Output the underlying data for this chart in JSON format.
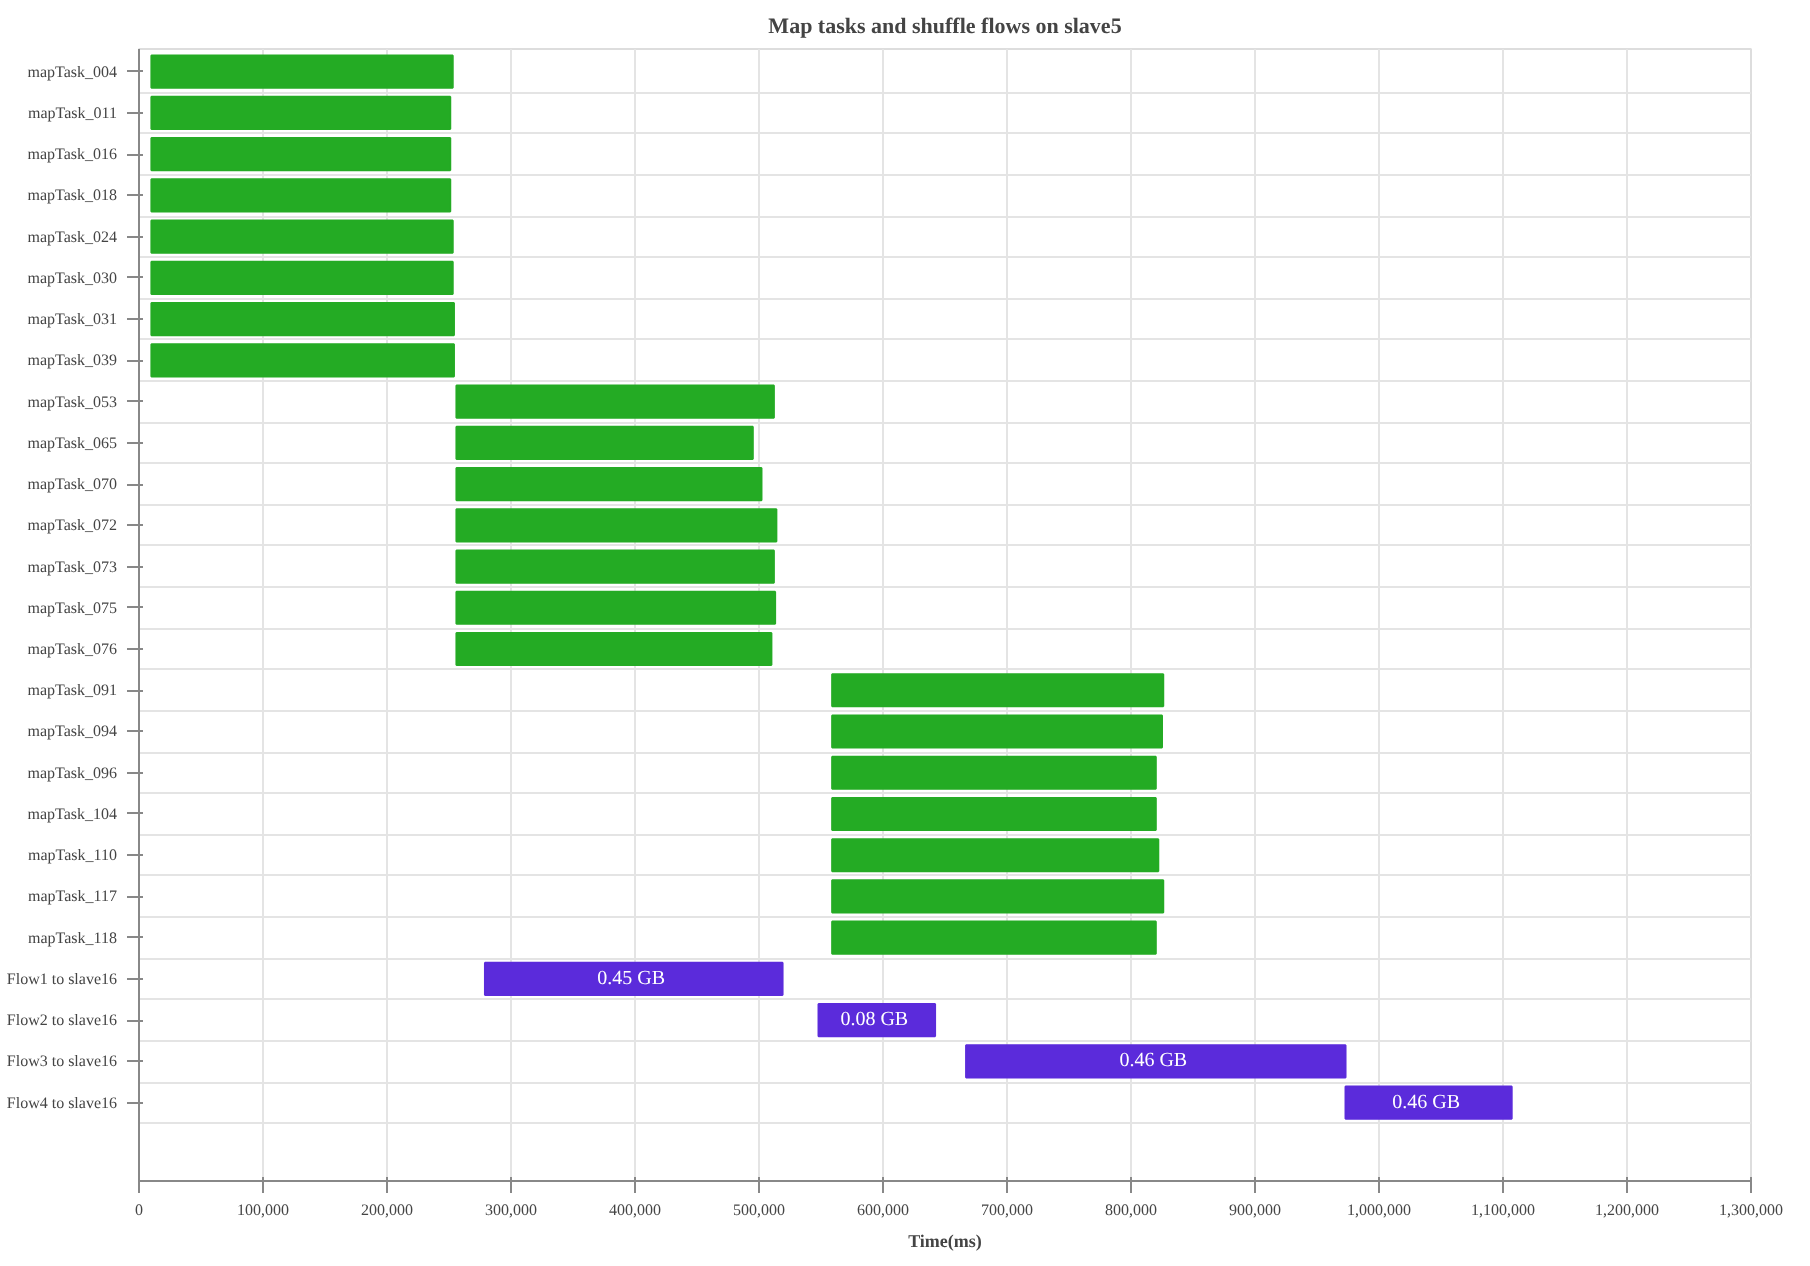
{
  "chart_data": {
    "type": "bar",
    "orientation": "horizontal",
    "title": "Map tasks and shuffle flows on slave5",
    "xlabel": "Time(ms)",
    "categories": [
      "mapTask_004",
      "mapTask_011",
      "mapTask_016",
      "mapTask_018",
      "mapTask_024",
      "mapTask_030",
      "mapTask_031",
      "mapTask_039",
      "mapTask_053",
      "mapTask_065",
      "mapTask_070",
      "mapTask_072",
      "mapTask_073",
      "mapTask_075",
      "mapTask_076",
      "mapTask_091",
      "mapTask_094",
      "mapTask_096",
      "mapTask_104",
      "mapTask_110",
      "mapTask_117",
      "mapTask_118",
      "Flow1 to slave16",
      "Flow2 to slave16",
      "Flow3 to slave16",
      "Flow4 to slave16"
    ],
    "base": [
      10000,
      10000,
      10000,
      10000,
      10000,
      10000,
      10000,
      10000,
      256000,
      256000,
      256000,
      256000,
      256000,
      256000,
      256000,
      559000,
      559000,
      559000,
      559000,
      559000,
      559000,
      559000,
      279000,
      548000,
      667000,
      973000
    ],
    "values": [
      243000,
      241000,
      241000,
      241000,
      243000,
      243000,
      244000,
      244000,
      256000,
      239000,
      246000,
      258000,
      256000,
      257000,
      254000,
      267000,
      266000,
      261000,
      261000,
      263000,
      267000,
      261000,
      240000,
      94000,
      306000,
      134000
    ],
    "colors": [
      "#24ab24",
      "#24ab24",
      "#24ab24",
      "#24ab24",
      "#24ab24",
      "#24ab24",
      "#24ab24",
      "#24ab24",
      "#24ab24",
      "#24ab24",
      "#24ab24",
      "#24ab24",
      "#24ab24",
      "#24ab24",
      "#24ab24",
      "#24ab24",
      "#24ab24",
      "#24ab24",
      "#24ab24",
      "#24ab24",
      "#24ab24",
      "#24ab24",
      "#5b2bdb",
      "#5b2bdb",
      "#5b2bdb",
      "#5b2bdb"
    ],
    "annotations": [
      {
        "text": "0.45  GB",
        "x": 399000,
        "y": "Flow1 to slave16"
      },
      {
        "text": "0.08  GB",
        "x": 595000,
        "y": "Flow2 to slave16"
      },
      {
        "text": "0.46  GB",
        "x": 820000,
        "y": "Flow3 to slave16"
      },
      {
        "text": "0.46  GB",
        "x": 1040000,
        "y": "Flow4 to slave16"
      }
    ],
    "xlim": [
      0,
      1300000
    ],
    "xticks": [
      0,
      {
        "value": 100000,
        "label": "100,000"
      },
      {
        "value": 200000,
        "label": "200,000"
      },
      {
        "value": 300000,
        "label": "300,000"
      },
      {
        "value": 400000,
        "label": "400,000"
      },
      {
        "value": 500000,
        "label": "500,000"
      },
      {
        "value": 600000,
        "label": "600,000"
      },
      {
        "value": 700000,
        "label": "700,000"
      },
      {
        "value": 800000,
        "label": "800,000"
      },
      {
        "value": 900000,
        "label": "900,000"
      },
      {
        "value": 1000000,
        "label": "1,000,000"
      },
      {
        "value": 1100000,
        "label": "1,100,000"
      },
      {
        "value": 1200000,
        "label": "1,200,000"
      },
      {
        "value": 1300000,
        "label": "1,300,000"
      }
    ],
    "grid": true
  }
}
